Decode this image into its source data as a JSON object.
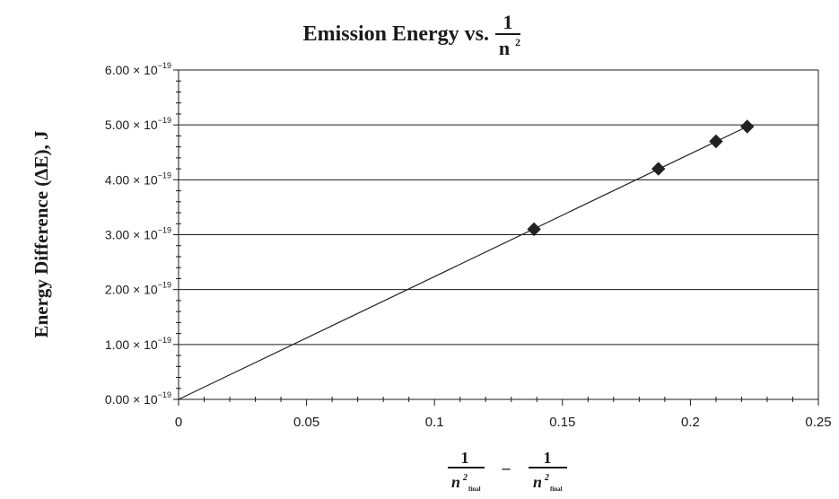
{
  "chart_data": {
    "type": "scatter",
    "title": {
      "prefix": "Emission Energy vs.",
      "frac_num": "1",
      "frac_den_base": "n",
      "frac_den_exp": "2"
    },
    "ylabel": "Energy Difference (ΔE), J",
    "xlabel": {
      "left_num": "1",
      "left_den_base": "n",
      "left_den_exp": "2",
      "left_den_sub": "final",
      "operator": "–",
      "right_num": "1",
      "right_den_base": "n",
      "right_den_exp": "2",
      "right_den_sub": "final"
    },
    "xlim": [
      0,
      0.25
    ],
    "ylim": [
      0,
      6e-19
    ],
    "x_ticks": [
      0,
      0.05,
      0.1,
      0.15,
      0.2,
      0.25
    ],
    "x_tick_labels": [
      "0",
      "0.05",
      "0.1",
      "0.15",
      "0.2",
      "0.25"
    ],
    "y_ticks": [
      0,
      1e-19,
      2e-19,
      3e-19,
      4e-19,
      5e-19,
      6e-19
    ],
    "y_tick_labels": [
      {
        "mantissa": "0.00",
        "times": "×",
        "base": "10",
        "exponent": "−19"
      },
      {
        "mantissa": "1.00",
        "times": "×",
        "base": "10",
        "exponent": "−19"
      },
      {
        "mantissa": "2.00",
        "times": "×",
        "base": "10",
        "exponent": "−19"
      },
      {
        "mantissa": "3.00",
        "times": "×",
        "base": "10",
        "exponent": "−19"
      },
      {
        "mantissa": "4.00",
        "times": "×",
        "base": "10",
        "exponent": "−19"
      },
      {
        "mantissa": "5.00",
        "times": "×",
        "base": "10",
        "exponent": "−19"
      },
      {
        "mantissa": "6.00",
        "times": "×",
        "base": "10",
        "exponent": "−19"
      }
    ],
    "grid": "horizontal",
    "series": [
      {
        "marker": "diamond",
        "color": "#222222",
        "x": [
          0.1389,
          0.1875,
          0.21,
          0.2222
        ],
        "y": [
          3.1e-19,
          4.2e-19,
          4.7e-19,
          4.97e-19
        ]
      }
    ],
    "trendline": {
      "color": "#222222",
      "x": [
        0,
        0.2222
      ],
      "y": [
        0,
        4.97e-19
      ]
    }
  }
}
